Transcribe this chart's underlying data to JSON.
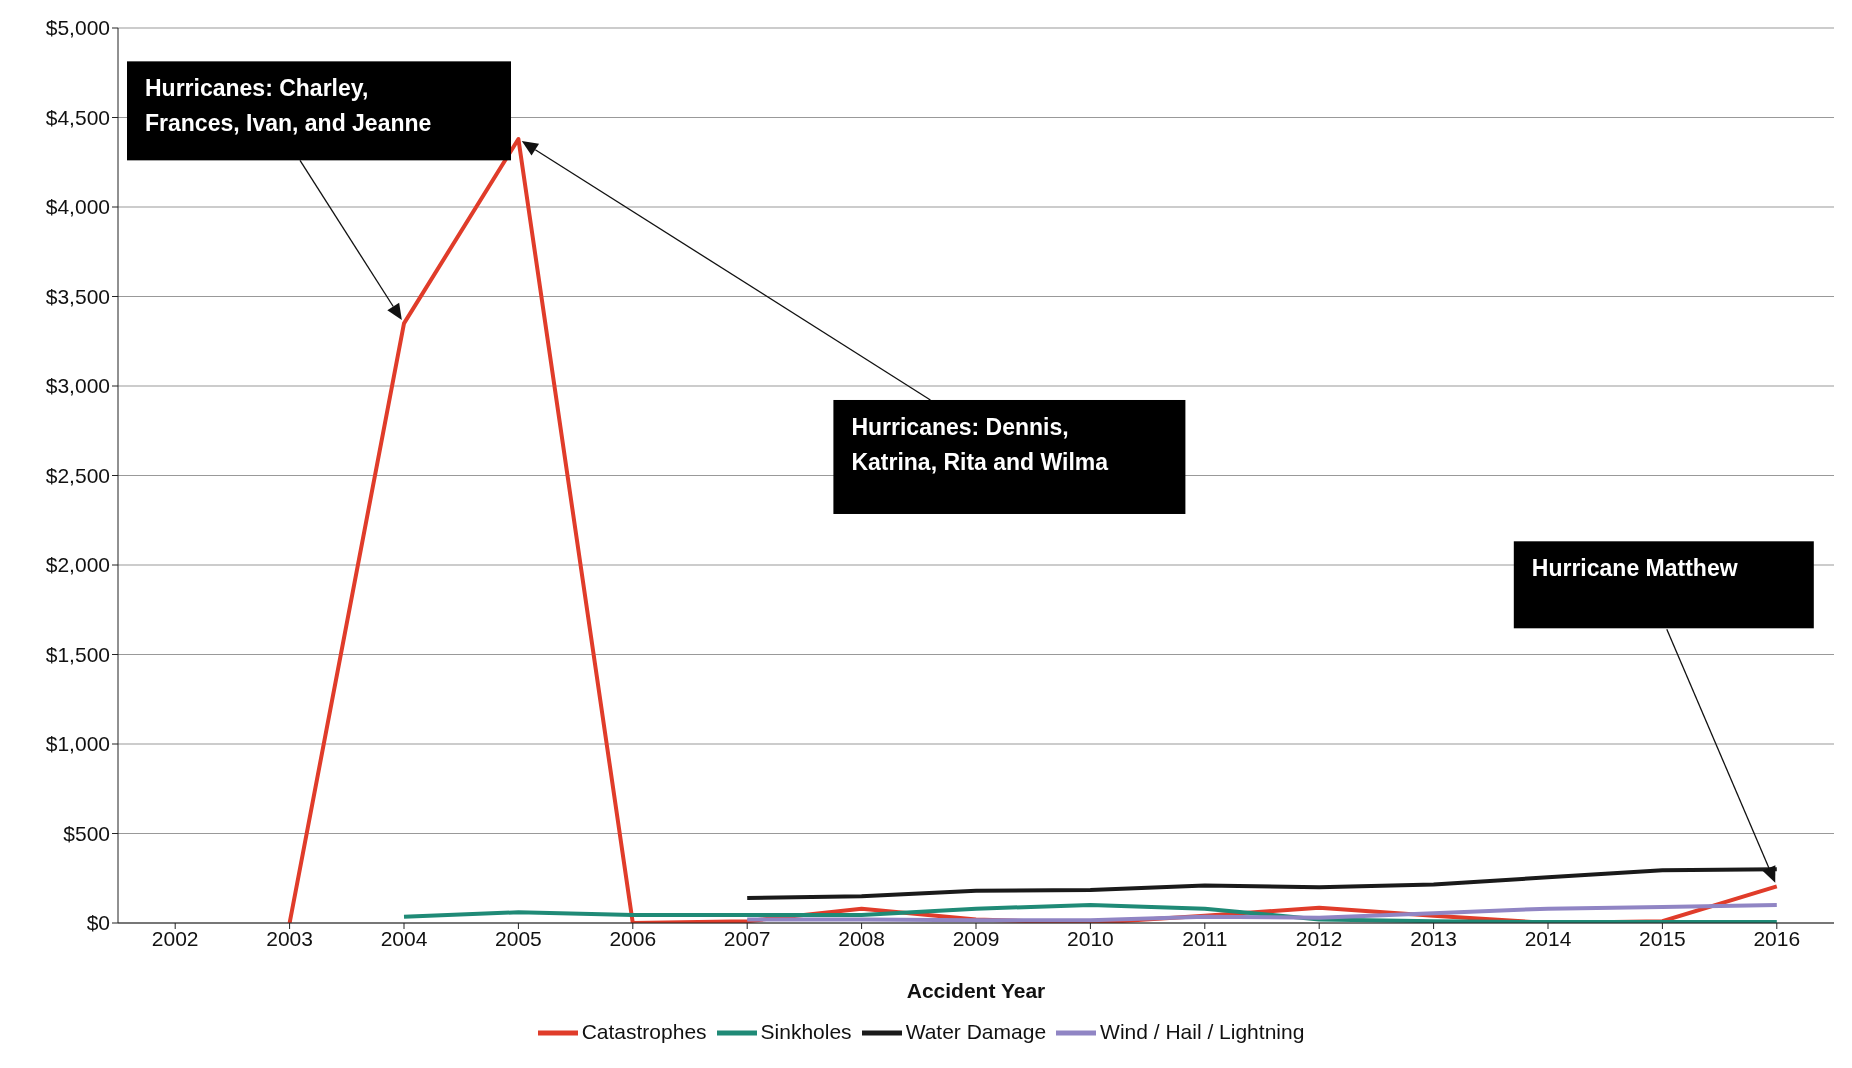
{
  "chart_data": {
    "type": "line",
    "xlabel": "Accident Year",
    "categories": [
      "2002",
      "2003",
      "2004",
      "2005",
      "2006",
      "2007",
      "2008",
      "2009",
      "2010",
      "2011",
      "2012",
      "2013",
      "2014",
      "2015",
      "2016"
    ],
    "series": [
      {
        "name": "Catastrophes",
        "color": "#e03c2a",
        "values": [
          null,
          0,
          3350,
          4380,
          0,
          10,
          80,
          20,
          0,
          40,
          85,
          40,
          0,
          10,
          205
        ]
      },
      {
        "name": "Sinkholes",
        "color": "#1f8a76",
        "values": [
          null,
          null,
          35,
          60,
          45,
          45,
          45,
          80,
          100,
          80,
          20,
          10,
          5,
          5,
          5
        ]
      },
      {
        "name": "Water Damage",
        "color": "#1a1a1a",
        "values": [
          null,
          null,
          null,
          null,
          null,
          140,
          150,
          180,
          185,
          210,
          200,
          215,
          255,
          295,
          300
        ]
      },
      {
        "name": "Wind / Hail / Lightning",
        "color": "#9085c4",
        "values": [
          null,
          null,
          null,
          null,
          null,
          20,
          20,
          15,
          15,
          35,
          30,
          55,
          80,
          90,
          100
        ]
      }
    ],
    "ylim": [
      0,
      5000
    ],
    "yticks": [
      {
        "value": 0,
        "label": "$0"
      },
      {
        "value": 500,
        "label": "$500"
      },
      {
        "value": 1000,
        "label": "$1,000"
      },
      {
        "value": 1500,
        "label": "$1,500"
      },
      {
        "value": 2000,
        "label": "$2,000"
      },
      {
        "value": 2500,
        "label": "$2,500"
      },
      {
        "value": 3000,
        "label": "$3,000"
      },
      {
        "value": 3500,
        "label": "$3,500"
      },
      {
        "value": 4000,
        "label": "$4,000"
      },
      {
        "value": 4500,
        "label": "$4,500"
      },
      {
        "value": 5000,
        "label": "$5,000"
      }
    ],
    "grid": "y",
    "legend": "bottom",
    "marker": "none",
    "line_style": "solid",
    "annotations": [
      "Hurricanes: Charley, Frances, Ivan, and Jeanne",
      "Hurricanes: Dennis, Katrina, Rita and Wilma",
      "Hurricane Matthew"
    ]
  }
}
